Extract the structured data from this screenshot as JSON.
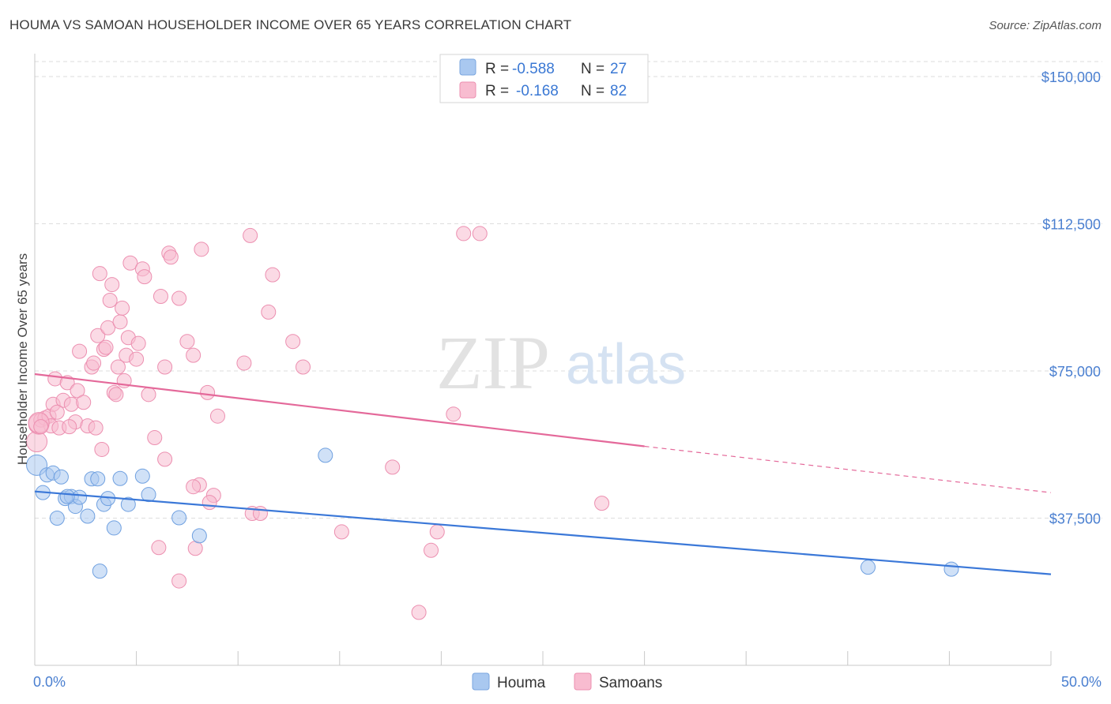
{
  "title": "HOUMA VS SAMOAN HOUSEHOLDER INCOME OVER 65 YEARS CORRELATION CHART",
  "source": "Source: ZipAtlas.com",
  "watermark": {
    "zip": "ZIP",
    "atlas": "atlas"
  },
  "legend_top": [
    {
      "r_label": "R =",
      "r_value": "-0.588",
      "n_label": "N =",
      "n_value": "27",
      "color": "#a9c8f0",
      "stroke": "#7aa6df"
    },
    {
      "r_label": "R =",
      "r_value": "-0.168",
      "n_label": "N =",
      "n_value": "82",
      "color": "#f8bcd0",
      "stroke": "#ec8fb0"
    }
  ],
  "legend_bottom": [
    {
      "label": "Houma",
      "color": "#a9c8f0",
      "stroke": "#7aa6df"
    },
    {
      "label": "Samoans",
      "color": "#f8bcd0",
      "stroke": "#ec8fb0"
    }
  ],
  "chart_data": {
    "type": "scatter",
    "xlabel": "",
    "ylabel": "Householder Income Over 65 years",
    "xlim": [
      0,
      50
    ],
    "ylim": [
      0,
      152500
    ],
    "x_tick_labels": [
      {
        "value": 0,
        "label": "0.0%"
      },
      {
        "value": 50,
        "label": "50.0%"
      }
    ],
    "y_ticks": [
      {
        "value": 37500,
        "label": "$37,500"
      },
      {
        "value": 75000,
        "label": "$75,000"
      },
      {
        "value": 112500,
        "label": "$112,500"
      },
      {
        "value": 150000,
        "label": "$150,000"
      }
    ],
    "grid": "horizontal dashed",
    "series": [
      {
        "name": "Houma",
        "color": "#6fa0e0",
        "fill": "#a9c8f0",
        "points": [
          [
            0.1,
            51000
          ],
          [
            0.4,
            44000
          ],
          [
            0.6,
            48500
          ],
          [
            0.9,
            49000
          ],
          [
            1.1,
            37500
          ],
          [
            1.3,
            48000
          ],
          [
            1.5,
            42500
          ],
          [
            1.8,
            43000
          ],
          [
            2.0,
            40500
          ],
          [
            2.2,
            42800
          ],
          [
            2.6,
            38000
          ],
          [
            2.8,
            47500
          ],
          [
            3.1,
            47500
          ],
          [
            3.4,
            41000
          ],
          [
            3.6,
            42500
          ],
          [
            3.9,
            35000
          ],
          [
            4.2,
            47600
          ],
          [
            4.6,
            41000
          ],
          [
            5.3,
            48200
          ],
          [
            5.6,
            43500
          ],
          [
            7.1,
            37600
          ],
          [
            8.1,
            33000
          ],
          [
            3.2,
            24000
          ],
          [
            14.3,
            53500
          ],
          [
            41.0,
            25000
          ],
          [
            45.1,
            24500
          ],
          [
            1.6,
            43000
          ]
        ],
        "trend": {
          "x": [
            0,
            50
          ],
          "y": [
            44300,
            23200
          ]
        }
      },
      {
        "name": "Samoans",
        "color": "#ec8fb0",
        "fill": "#f8bcd0",
        "points": [
          [
            0.1,
            57000
          ],
          [
            0.2,
            61500
          ],
          [
            0.3,
            62500
          ],
          [
            0.5,
            63000
          ],
          [
            0.7,
            63500
          ],
          [
            0.8,
            61000
          ],
          [
            0.9,
            66500
          ],
          [
            1.0,
            73000
          ],
          [
            1.2,
            60500
          ],
          [
            1.4,
            67500
          ],
          [
            1.6,
            72000
          ],
          [
            1.8,
            66500
          ],
          [
            2.0,
            62000
          ],
          [
            2.1,
            70000
          ],
          [
            2.2,
            80000
          ],
          [
            2.4,
            67000
          ],
          [
            2.6,
            61000
          ],
          [
            2.8,
            76000
          ],
          [
            2.9,
            77000
          ],
          [
            3.0,
            60500
          ],
          [
            3.1,
            84000
          ],
          [
            3.3,
            55000
          ],
          [
            3.4,
            80500
          ],
          [
            3.5,
            81000
          ],
          [
            3.6,
            86000
          ],
          [
            3.7,
            93000
          ],
          [
            3.8,
            97000
          ],
          [
            3.9,
            69500
          ],
          [
            4.0,
            69000
          ],
          [
            4.1,
            76000
          ],
          [
            4.2,
            87500
          ],
          [
            4.3,
            91000
          ],
          [
            4.4,
            72500
          ],
          [
            4.5,
            79000
          ],
          [
            4.6,
            83500
          ],
          [
            4.7,
            102500
          ],
          [
            5.0,
            78000
          ],
          [
            5.1,
            82000
          ],
          [
            5.3,
            101000
          ],
          [
            5.4,
            99000
          ],
          [
            5.6,
            69000
          ],
          [
            5.9,
            58000
          ],
          [
            6.2,
            94000
          ],
          [
            6.4,
            76000
          ],
          [
            6.6,
            105000
          ],
          [
            6.7,
            104000
          ],
          [
            7.1,
            93500
          ],
          [
            7.5,
            82500
          ],
          [
            7.8,
            79000
          ],
          [
            8.2,
            106000
          ],
          [
            8.5,
            69500
          ],
          [
            9.0,
            63500
          ],
          [
            10.3,
            77000
          ],
          [
            10.6,
            109500
          ],
          [
            11.5,
            90000
          ],
          [
            11.7,
            99500
          ],
          [
            12.7,
            82500
          ],
          [
            13.2,
            76000
          ],
          [
            21.1,
            110000
          ],
          [
            21.9,
            110000
          ],
          [
            20.6,
            64000
          ],
          [
            17.6,
            50500
          ],
          [
            0.2,
            61800
          ],
          [
            0.3,
            60800
          ],
          [
            1.1,
            64500
          ],
          [
            1.7,
            60800
          ],
          [
            3.2,
            99800
          ],
          [
            6.1,
            30000
          ],
          [
            7.1,
            21500
          ],
          [
            7.9,
            29800
          ],
          [
            8.8,
            43300
          ],
          [
            8.1,
            46000
          ],
          [
            8.6,
            41500
          ],
          [
            10.7,
            38700
          ],
          [
            11.1,
            38700
          ],
          [
            15.1,
            34000
          ],
          [
            19.5,
            29300
          ],
          [
            19.8,
            34000
          ],
          [
            27.9,
            41300
          ],
          [
            18.9,
            13500
          ],
          [
            7.8,
            45500
          ],
          [
            6.4,
            52500
          ]
        ],
        "trend": {
          "x": [
            0,
            30
          ],
          "y": [
            74200,
            55800
          ]
        },
        "trend_dashed": {
          "x": [
            30,
            50
          ],
          "y": [
            55800,
            44000
          ]
        }
      }
    ]
  }
}
